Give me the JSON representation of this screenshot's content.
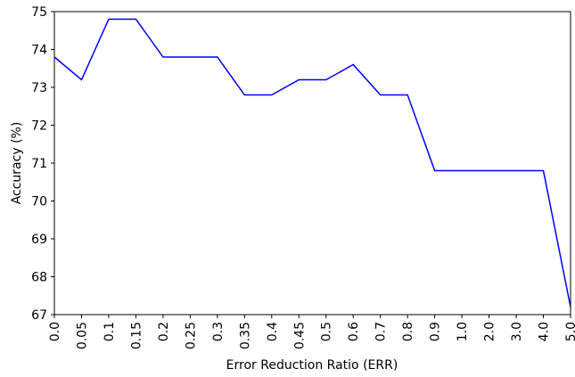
{
  "chart_data": {
    "type": "line",
    "x_label": "Error Reduction Ratio (ERR)",
    "y_label": "Accuracy (%)",
    "categories": [
      "0.0",
      "0.05",
      "0.1",
      "0.15",
      "0.2",
      "0.25",
      "0.3",
      "0.35",
      "0.4",
      "0.45",
      "0.5",
      "0.6",
      "0.7",
      "0.8",
      "0.9",
      "1.0",
      "2.0",
      "3.0",
      "4.0",
      "5.0"
    ],
    "series": [
      {
        "color": "#0000ff",
        "values": [
          73.8,
          73.2,
          74.8,
          74.8,
          73.8,
          73.8,
          73.8,
          72.8,
          72.8,
          73.2,
          73.2,
          73.6,
          72.8,
          72.8,
          70.8,
          70.8,
          70.8,
          70.8,
          70.8,
          67.2
        ]
      }
    ],
    "ylim": [
      67,
      75
    ],
    "yticks": [
      67,
      68,
      69,
      70,
      71,
      72,
      73,
      74,
      75
    ],
    "grid": false
  }
}
